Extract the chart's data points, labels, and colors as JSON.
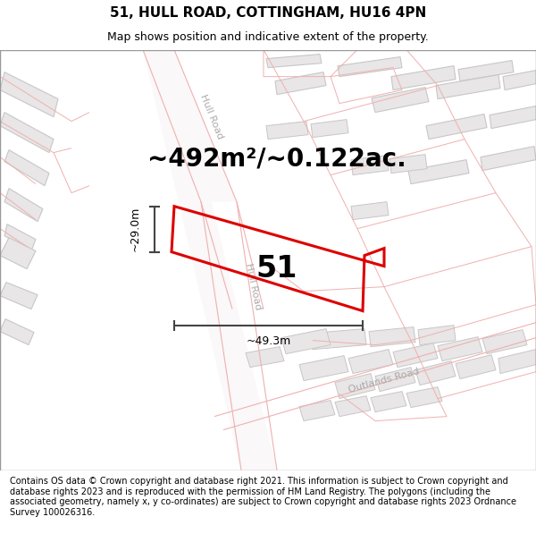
{
  "title": "51, HULL ROAD, COTTINGHAM, HU16 4PN",
  "subtitle": "Map shows position and indicative extent of the property.",
  "footer": "Contains OS data © Crown copyright and database right 2021. This information is subject to Crown copyright and database rights 2023 and is reproduced with the permission of HM Land Registry. The polygons (including the associated geometry, namely x, y co-ordinates) are subject to Crown copyright and database rights 2023 Ordnance Survey 100026316.",
  "area_label": "~492m²/~0.122ac.",
  "number_label": "51",
  "dim_width": "~49.3m",
  "dim_height": "~29.0m",
  "road_label_1": "Hull Road",
  "road_label_2": "Hull Road",
  "road_label_3": "Outlands Road",
  "map_bg": "#f9f8f8",
  "building_fill": "#e8e6e6",
  "building_stroke": "#c8c6c6",
  "road_line_color": "#f0b0b0",
  "plot_stroke": "#dd0000",
  "dim_color": "#444444",
  "title_fontsize": 11,
  "subtitle_fontsize": 9,
  "footer_fontsize": 7.0,
  "area_fontsize": 20,
  "number_fontsize": 24,
  "dim_fontsize": 9,
  "road_label_fontsize": 8
}
